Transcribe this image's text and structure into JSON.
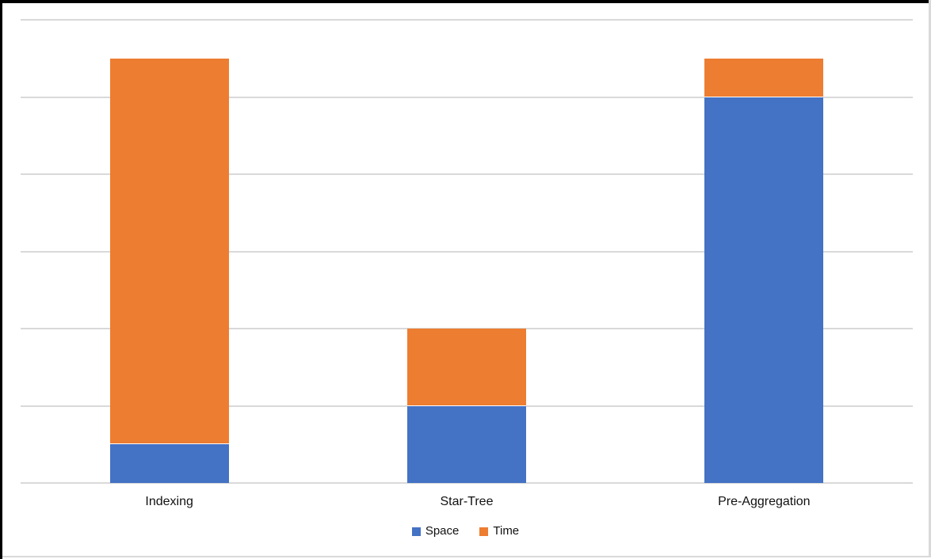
{
  "chart_data": {
    "type": "bar",
    "stacked": true,
    "title": "",
    "xlabel": "",
    "ylabel": "",
    "categories": [
      "Indexing",
      "Star-Tree",
      "Pre-Aggregation"
    ],
    "series": [
      {
        "name": "Space",
        "color": "#4472C4",
        "values": [
          0.5,
          1,
          5
        ]
      },
      {
        "name": "Time",
        "color": "#ED7D31",
        "values": [
          5,
          1,
          0.5
        ]
      }
    ],
    "ylim": [
      0,
      6
    ],
    "gridline_step": 1,
    "grid": true,
    "y_tick_labels": "none",
    "legend_position": "bottom"
  },
  "legend": {
    "items": [
      {
        "label": "Space",
        "color": "#4472C4"
      },
      {
        "label": "Time",
        "color": "#ED7D31"
      }
    ]
  },
  "style": {
    "plot_bg": "#FFFFFF",
    "gridline_color": "#D9D9D9",
    "text_color": "#111111",
    "frame_top_left_color": "#000000",
    "frame_bottom_right_color": "#D9D9D9",
    "segment_separator_color": "#FFFFFF"
  }
}
